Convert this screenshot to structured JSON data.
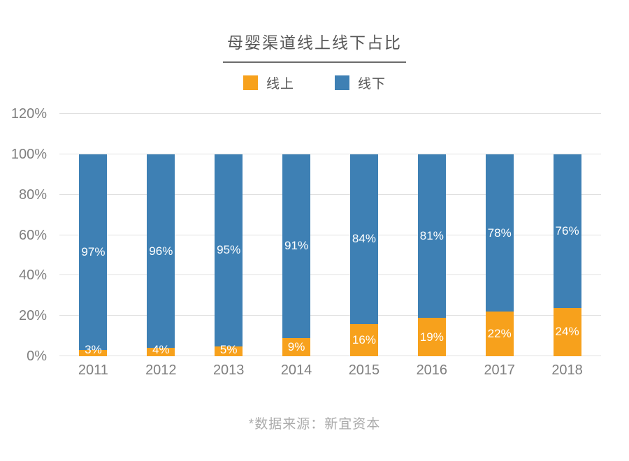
{
  "title": "母婴渠道线上线下占比",
  "legend": [
    {
      "label": "线上",
      "color": "#F7A11C"
    },
    {
      "label": "线下",
      "color": "#3E80B4"
    }
  ],
  "source_note": "*数据来源：新宜资本",
  "colors": {
    "online": "#F7A11C",
    "offline": "#3E80B4",
    "gridline": "#E0E0E0",
    "axis_text": "#7F7F7F",
    "title_text": "#555555",
    "note_text": "#ABABAB",
    "bar_label_text": "#FFFFFF"
  },
  "chart_data": {
    "type": "bar",
    "stacked": true,
    "title": "母婴渠道线上线下占比",
    "categories": [
      "2011",
      "2012",
      "2013",
      "2014",
      "2015",
      "2016",
      "2017",
      "2018"
    ],
    "series": [
      {
        "name": "线上",
        "color": "#F7A11C",
        "values": [
          3,
          4,
          5,
          9,
          16,
          19,
          22,
          24
        ],
        "labels": [
          "3%",
          "4%",
          "5%",
          "9%",
          "16%",
          "19%",
          "22%",
          "24%"
        ]
      },
      {
        "name": "线下",
        "color": "#3E80B4",
        "values": [
          97,
          96,
          95,
          91,
          84,
          81,
          78,
          76
        ],
        "labels": [
          "97%",
          "96%",
          "95%",
          "91%",
          "84%",
          "81%",
          "78%",
          "76%"
        ]
      }
    ],
    "xlabel": "",
    "ylabel": "",
    "ylim": [
      0,
      120
    ],
    "ytick_step": 20,
    "yticks": [
      "0%",
      "20%",
      "40%",
      "60%",
      "80%",
      "100%",
      "120%"
    ],
    "grid": true,
    "legend_position": "top"
  }
}
